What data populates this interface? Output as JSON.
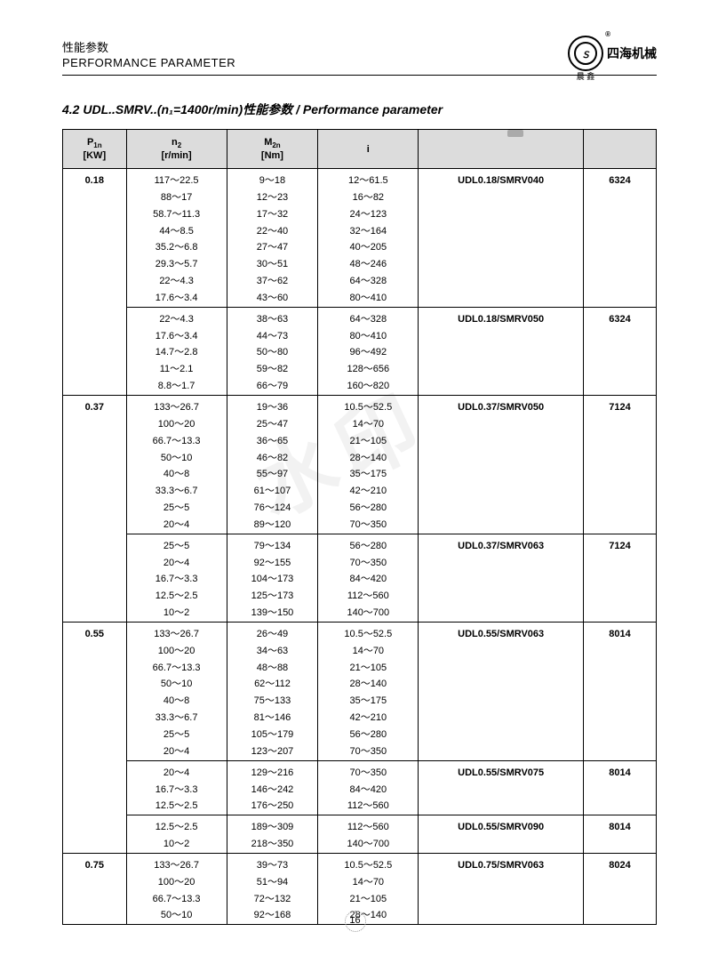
{
  "header": {
    "title_cn": "性能参数",
    "title_en": "PERFORMANCE PARAMETER",
    "brand": "四海机械",
    "brand_sub": "晨 鑫"
  },
  "section_title": "4.2 UDL..SMRV..(n₁=1400r/min)性能参数 / Performance parameter",
  "columns": {
    "p": "P₁n\n[KW]",
    "n": "n₂\n[r/min]",
    "m": "M₂n\n[Nm]",
    "i": "i",
    "model": "",
    "code": ""
  },
  "groups": [
    {
      "p": "0.18",
      "subgroups": [
        {
          "model": "UDL0.18/SMRV040",
          "code": "6324",
          "rows": [
            [
              "117～22.5",
              "9～18",
              "12～61.5"
            ],
            [
              "88～17",
              "12～23",
              "16～82"
            ],
            [
              "58.7～11.3",
              "17～32",
              "24～123"
            ],
            [
              "44～8.5",
              "22～40",
              "32～164"
            ],
            [
              "35.2～6.8",
              "27～47",
              "40～205"
            ],
            [
              "29.3～5.7",
              "30～51",
              "48～246"
            ],
            [
              "22～4.3",
              "37～62",
              "64～328"
            ],
            [
              "17.6～3.4",
              "43～60",
              "80～410"
            ]
          ]
        },
        {
          "model": "UDL0.18/SMRV050",
          "code": "6324",
          "rows": [
            [
              "22～4.3",
              "38～63",
              "64～328"
            ],
            [
              "17.6～3.4",
              "44～73",
              "80～410"
            ],
            [
              "14.7～2.8",
              "50～80",
              "96～492"
            ],
            [
              "11～2.1",
              "59～82",
              "128～656"
            ],
            [
              "8.8～1.7",
              "66～79",
              "160～820"
            ]
          ]
        }
      ]
    },
    {
      "p": "0.37",
      "subgroups": [
        {
          "model": "UDL0.37/SMRV050",
          "code": "7124",
          "rows": [
            [
              "133～26.7",
              "19～36",
              "10.5～52.5"
            ],
            [
              "100～20",
              "25～47",
              "14～70"
            ],
            [
              "66.7～13.3",
              "36～65",
              "21～105"
            ],
            [
              "50～10",
              "46～82",
              "28～140"
            ],
            [
              "40～8",
              "55～97",
              "35～175"
            ],
            [
              "33.3～6.7",
              "61～107",
              "42～210"
            ],
            [
              "25～5",
              "76～124",
              "56～280"
            ],
            [
              "20～4",
              "89～120",
              "70～350"
            ]
          ]
        },
        {
          "model": "UDL0.37/SMRV063",
          "code": "7124",
          "rows": [
            [
              "25～5",
              "79～134",
              "56～280"
            ],
            [
              "20～4",
              "92～155",
              "70～350"
            ],
            [
              "16.7～3.3",
              "104～173",
              "84～420"
            ],
            [
              "12.5～2.5",
              "125～173",
              "112～560"
            ],
            [
              "10～2",
              "139～150",
              "140～700"
            ]
          ]
        }
      ]
    },
    {
      "p": "0.55",
      "subgroups": [
        {
          "model": "UDL0.55/SMRV063",
          "code": "8014",
          "rows": [
            [
              "133～26.7",
              "26～49",
              "10.5～52.5"
            ],
            [
              "100～20",
              "34～63",
              "14～70"
            ],
            [
              "66.7～13.3",
              "48～88",
              "21～105"
            ],
            [
              "50～10",
              "62～112",
              "28～140"
            ],
            [
              "40～8",
              "75～133",
              "35～175"
            ],
            [
              "33.3～6.7",
              "81～146",
              "42～210"
            ],
            [
              "25～5",
              "105～179",
              "56～280"
            ],
            [
              "20～4",
              "123～207",
              "70～350"
            ]
          ]
        },
        {
          "model": "UDL0.55/SMRV075",
          "code": "8014",
          "rows": [
            [
              "20～4",
              "129～216",
              "70～350"
            ],
            [
              "16.7～3.3",
              "146～242",
              "84～420"
            ],
            [
              "12.5～2.5",
              "176～250",
              "112～560"
            ]
          ]
        },
        {
          "model": "UDL0.55/SMRV090",
          "code": "8014",
          "rows": [
            [
              "12.5～2.5",
              "189～309",
              "112～560"
            ],
            [
              "10～2",
              "218～350",
              "140～700"
            ]
          ]
        }
      ]
    },
    {
      "p": "0.75",
      "subgroups": [
        {
          "model": "UDL0.75/SMRV063",
          "code": "8024",
          "rows": [
            [
              "133～26.7",
              "39～73",
              "10.5～52.5"
            ],
            [
              "100～20",
              "51～94",
              "14～70"
            ],
            [
              "66.7～13.3",
              "72～132",
              "21～105"
            ],
            [
              "50～10",
              "92～168",
              "28～140"
            ]
          ]
        }
      ]
    }
  ],
  "page_number": "16",
  "watermark": "水印",
  "colors": {
    "header_bg": "#dcdcdc",
    "pcol_bg": "#ededed",
    "border": "#000000",
    "text": "#000000"
  }
}
